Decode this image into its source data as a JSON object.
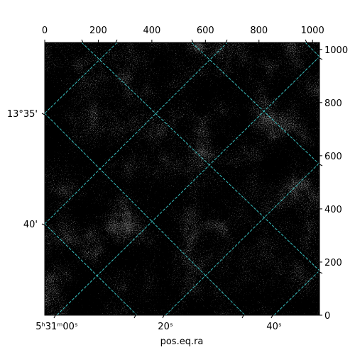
{
  "image": {
    "top_axis": {
      "lim": [
        0,
        1026
      ],
      "ticks": [
        0,
        200,
        400,
        600,
        800,
        1000
      ]
    },
    "right_axis": {
      "lim": [
        0,
        1026
      ],
      "ticks": [
        0,
        200,
        400,
        600,
        800,
        1000
      ]
    },
    "bottom_axis": {
      "ticks": [
        "5ʰ31ᵐ00ˢ",
        "20ˢ",
        "40ˢ"
      ],
      "label": "pos.eq.ra"
    },
    "left_axis": {
      "ticks": [
        "13°35'",
        "40'"
      ]
    }
  }
}
